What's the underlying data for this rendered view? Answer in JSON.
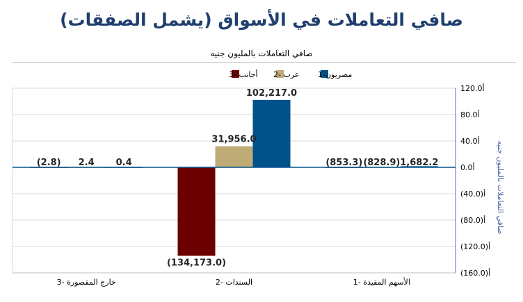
{
  "header": {
    "title": "صافي التعاملات في الأسواق (يشمل الصفقات)"
  },
  "chart_data": {
    "type": "bar",
    "title": "صافي التعاملات بالمليون جنيه",
    "ylabel": "صافي التعاملات بالمليون جنيه",
    "xlabel": "",
    "categories": [
      "الأسهم المقيدة -1",
      "السندات -2",
      "خارج المقصورة -3"
    ],
    "series": [
      {
        "name": "مصريون-1",
        "color": "#00528a",
        "values": [
          1682.2,
          102217.0,
          0.4
        ],
        "labels": [
          "1,682.2",
          "102,217.0",
          "0.4"
        ]
      },
      {
        "name": "عرب -2",
        "color": "#bfab75",
        "values": [
          -828.9,
          31956.0,
          2.4
        ],
        "labels": [
          "(828.9)",
          "31,956.0",
          "2.4"
        ]
      },
      {
        "name": "أجانب -3",
        "color": "#6b0000",
        "values": [
          -853.3,
          -134173.0,
          -2.8
        ],
        "labels": [
          "(853.3)",
          "(134,173.0)",
          "(2.8)"
        ]
      }
    ],
    "yticks": [
      "120.0أ",
      "80.0أ",
      "40.0أ",
      "0.0أ",
      "(40.0)أ",
      "(80.0)أ",
      "(120.0)أ",
      "(160.0)أ"
    ],
    "ylim": [
      -160000,
      120000
    ],
    "grid": true,
    "legend_position": "top"
  }
}
